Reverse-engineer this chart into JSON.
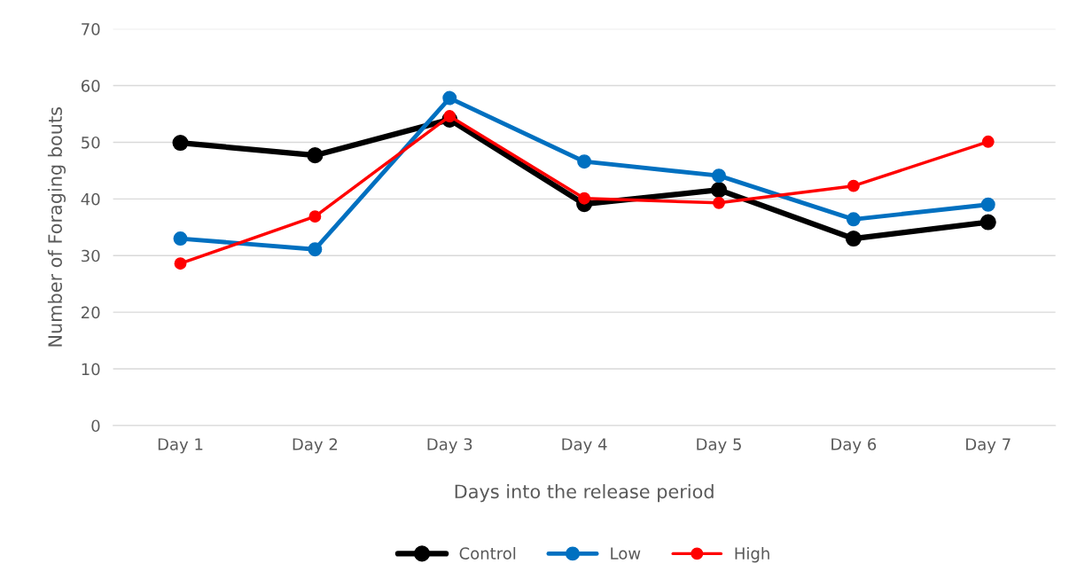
{
  "chart_data": {
    "type": "line",
    "xlabel": "Days into the release period",
    "ylabel": "Number of Foraging bouts",
    "categories": [
      "Day 1",
      "Day 2",
      "Day 3",
      "Day 4",
      "Day 5",
      "Day 6",
      "Day 7"
    ],
    "series": [
      {
        "name": "Control",
        "color": "#000000",
        "values": [
          49.9,
          47.7,
          54.0,
          39.1,
          41.6,
          33.0,
          35.9
        ]
      },
      {
        "name": "Low",
        "color": "#0070c0",
        "values": [
          33.0,
          31.1,
          57.8,
          46.6,
          44.1,
          36.4,
          39.0
        ]
      },
      {
        "name": "High",
        "color": "#ff0000",
        "values": [
          28.6,
          36.9,
          54.6,
          40.1,
          39.3,
          42.3,
          50.1
        ]
      }
    ],
    "ylim": [
      0,
      70
    ],
    "yticks": [
      0,
      10,
      20,
      30,
      40,
      50,
      60,
      70
    ],
    "grid": "y",
    "legend": "bottom",
    "marker": "circle",
    "line_style": "solid"
  }
}
